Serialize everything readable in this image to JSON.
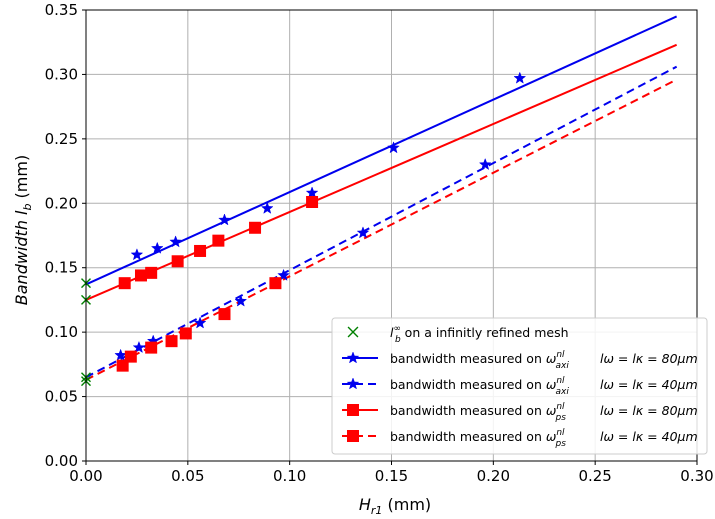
{
  "chart_data": {
    "type": "line",
    "title": "",
    "xlabel": "H_r1 (mm)",
    "ylabel": "Bandwidth l_b (mm)",
    "xlim": [
      0.0,
      0.3
    ],
    "ylim": [
      0.0,
      0.35
    ],
    "xticks": [
      "0.00",
      "0.05",
      "0.10",
      "0.15",
      "0.20",
      "0.25",
      "0.30"
    ],
    "yticks": [
      "0.00",
      "0.05",
      "0.10",
      "0.15",
      "0.20",
      "0.25",
      "0.30",
      "0.35"
    ],
    "grid": true,
    "legend_position": "lower-right",
    "series": [
      {
        "name": "l_b^∞ on a infinitly refined mesh",
        "color": "#008000",
        "marker": "x",
        "linestyle": "none",
        "x": [
          0.0,
          0.0,
          0.0,
          0.0
        ],
        "y": [
          0.138,
          0.125,
          0.065,
          0.062
        ]
      },
      {
        "name": "bandwidth measured on ω_axi^nl   l_ω = l_κ = 80μm",
        "color": "#0000ee",
        "marker": "star",
        "linestyle": "solid",
        "x": [
          0.025,
          0.035,
          0.044,
          0.068,
          0.089,
          0.111,
          0.151,
          0.213
        ],
        "y": [
          0.16,
          0.165,
          0.17,
          0.187,
          0.196,
          0.208,
          0.243,
          0.297
        ],
        "fit": [
          [
            0.0,
            0.137
          ],
          [
            0.29,
            0.345
          ]
        ]
      },
      {
        "name": "bandwidth measured on ω_axi^nl   l_ω = l_κ = 40μm",
        "color": "#0000ee",
        "marker": "star",
        "linestyle": "dashed",
        "x": [
          0.017,
          0.026,
          0.033,
          0.056,
          0.076,
          0.097,
          0.136,
          0.196
        ],
        "y": [
          0.082,
          0.088,
          0.093,
          0.107,
          0.124,
          0.144,
          0.177,
          0.23
        ],
        "fit": [
          [
            0.0,
            0.065
          ],
          [
            0.29,
            0.306
          ]
        ]
      },
      {
        "name": "bandwidth measured on ω_ps^nl   l_ω = l_κ = 80μm",
        "color": "#ff0000",
        "marker": "square",
        "linestyle": "solid",
        "x": [
          0.019,
          0.027,
          0.032,
          0.045,
          0.056,
          0.065,
          0.083,
          0.111
        ],
        "y": [
          0.138,
          0.144,
          0.146,
          0.155,
          0.163,
          0.171,
          0.181,
          0.201
        ],
        "fit": [
          [
            0.0,
            0.125
          ],
          [
            0.29,
            0.323
          ]
        ]
      },
      {
        "name": "bandwidth measured on ω_ps^nl   l_ω = l_κ = 40μm",
        "color": "#ff0000",
        "marker": "square",
        "linestyle": "dashed",
        "x": [
          0.018,
          0.022,
          0.032,
          0.042,
          0.049,
          0.068,
          0.093
        ],
        "y": [
          0.074,
          0.081,
          0.088,
          0.093,
          0.099,
          0.114,
          0.138
        ],
        "fit": [
          [
            0.0,
            0.063
          ],
          [
            0.29,
            0.296
          ]
        ]
      }
    ]
  },
  "labels": {
    "xlabel_main": "H",
    "xlabel_sub": "r1",
    "xlabel_unit": " (mm)",
    "ylabel_main": "Bandwidth ",
    "ylabel_var": "l",
    "ylabel_sub": "b",
    "ylabel_unit": " (mm)"
  },
  "legend": [
    {
      "pre": "",
      "sym": "l",
      "sub": "b",
      "sup": "∞",
      "post": "  on a infinitly refined mesh",
      "cond": ""
    },
    {
      "pre": "bandwidth measured on ",
      "sym": "ω",
      "sub": "axi",
      "sup": "nl",
      "post": "",
      "cond": "lω = lκ = 80μm"
    },
    {
      "pre": "bandwidth measured on ",
      "sym": "ω",
      "sub": "axi",
      "sup": "nl",
      "post": "",
      "cond": "lω = lκ = 40μm"
    },
    {
      "pre": "bandwidth measured on ",
      "sym": "ω",
      "sub": "ps",
      "sup": "nl",
      "post": "",
      "cond": "lω = lκ = 80μm"
    },
    {
      "pre": "bandwidth measured on ",
      "sym": "ω",
      "sub": "ps",
      "sup": "nl",
      "post": "",
      "cond": "lω = lκ = 40μm"
    }
  ]
}
